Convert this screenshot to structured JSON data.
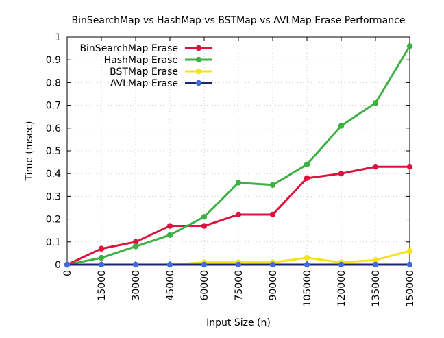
{
  "chart_data": {
    "type": "line",
    "title": "BinSearchMap vs HashMap vs BSTMap vs AVLMap Erase Performance",
    "xlabel": "Input Size (n)",
    "ylabel": "Time (msec)",
    "x": [
      0,
      15000,
      30000,
      45000,
      60000,
      75000,
      90000,
      105000,
      120000,
      135000,
      150000
    ],
    "x_tick_labels": [
      "0",
      "15000",
      "30000",
      "45000",
      "60000",
      "75000",
      "90000",
      "105000",
      "120000",
      "135000",
      "150000"
    ],
    "y_ticks": [
      0,
      0.1,
      0.2,
      0.3,
      0.4,
      0.5,
      0.6,
      0.7,
      0.8,
      0.9,
      1
    ],
    "y_tick_labels": [
      "0",
      "0.1",
      "0.2",
      "0.3",
      "0.4",
      "0.5",
      "0.6",
      "0.7",
      "0.8",
      "0.9",
      "1"
    ],
    "xlim": [
      0,
      150000
    ],
    "ylim": [
      0,
      1
    ],
    "grid": true,
    "legend_position": "top-left",
    "series": [
      {
        "name": "BinSearchMap Erase",
        "color": "#dc143c",
        "values": [
          0,
          0.07,
          0.1,
          0.17,
          0.17,
          0.22,
          0.22,
          0.38,
          0.4,
          0.43,
          0.43
        ]
      },
      {
        "name": "HashMap Erase",
        "color": "#3cb043",
        "values": [
          0,
          0.03,
          0.08,
          0.13,
          0.21,
          0.36,
          0.35,
          0.44,
          0.61,
          0.71,
          0.96
        ]
      },
      {
        "name": "BSTMap Erase",
        "color": "#f5e11d",
        "values": [
          0,
          0,
          0,
          0,
          0.01,
          0.01,
          0.01,
          0.03,
          0.01,
          0.02,
          0.06
        ]
      },
      {
        "name": "AVLMap Erase",
        "color": "#4169e1",
        "line_color": "#1a237e",
        "values": [
          0,
          0,
          0,
          0,
          0,
          0,
          0,
          0,
          0,
          0,
          0
        ]
      }
    ]
  }
}
